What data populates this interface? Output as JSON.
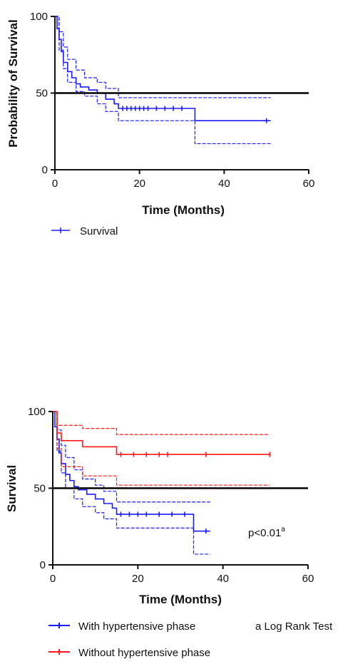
{
  "chart_data": [
    {
      "type": "line",
      "subtype": "kaplan-meier",
      "title": "",
      "xlabel": "Time (Months)",
      "ylabel": "Probability of Survival",
      "xlim": [
        0,
        60
      ],
      "ylim": [
        0,
        100
      ],
      "xticks": [
        0,
        20,
        40,
        60
      ],
      "yticks": [
        0,
        50,
        100
      ],
      "reference_line": {
        "y": 50,
        "color": "#000000"
      },
      "legend": {
        "position": "bottom-left",
        "entries": [
          "Survival"
        ]
      },
      "series": [
        {
          "name": "Survival",
          "color": "#1a1aff",
          "role": "estimate",
          "x": [
            0,
            0.5,
            1,
            1.5,
            2,
            3,
            4,
            5,
            6,
            8,
            10,
            12,
            14,
            15,
            20,
            33,
            33.1,
            51
          ],
          "y": [
            100,
            92,
            85,
            77,
            70,
            64,
            60,
            56,
            54,
            52,
            50,
            46,
            43,
            40,
            40,
            40,
            32,
            32
          ]
        },
        {
          "name": "",
          "color": "#1a1aff",
          "role": "upper-ci",
          "x": [
            0,
            1,
            2,
            3,
            5,
            7,
            10,
            12,
            15,
            51
          ],
          "y": [
            100,
            90,
            80,
            72,
            65,
            60,
            57,
            53,
            47,
            47
          ]
        },
        {
          "name": "",
          "color": "#1a1aff",
          "role": "lower-ci",
          "x": [
            0,
            1,
            2,
            3,
            5,
            7,
            10,
            12,
            15,
            33,
            33.1,
            51
          ],
          "y": [
            100,
            78,
            66,
            57,
            51,
            48,
            43,
            38,
            32,
            32,
            17,
            17
          ]
        }
      ],
      "censor_marks": {
        "series": "Survival",
        "x": [
          16,
          17,
          18,
          19,
          20,
          21,
          22,
          24,
          26,
          28,
          30,
          50
        ]
      }
    },
    {
      "type": "line",
      "subtype": "kaplan-meier",
      "title": "",
      "xlabel": "Time (Months)",
      "ylabel": "Survival",
      "xlim": [
        0,
        60
      ],
      "ylim": [
        0,
        100
      ],
      "xticks": [
        0,
        20,
        40,
        60
      ],
      "yticks": [
        0,
        50,
        100
      ],
      "reference_line": {
        "y": 50,
        "color": "#000000"
      },
      "annotation": {
        "text": "p<0.01",
        "superscript": "a",
        "position": "right-middle"
      },
      "footnote": "a Log Rank Test",
      "legend": {
        "position": "bottom-left",
        "entries": [
          "With hypertensive phase",
          "Without hypertensive phase"
        ]
      },
      "series": [
        {
          "name": "With hypertensive phase",
          "color": "#1a1aff",
          "role": "estimate",
          "x": [
            0,
            0.5,
            1,
            1.5,
            2,
            3,
            4,
            5,
            6,
            8,
            10,
            12,
            14,
            15,
            20,
            33,
            33.1,
            37
          ],
          "y": [
            100,
            90,
            82,
            73,
            66,
            59,
            55,
            51,
            49,
            46,
            43,
            40,
            37,
            33,
            33,
            33,
            22,
            22
          ]
        },
        {
          "name": "",
          "color": "#1a1aff",
          "role": "upper-ci",
          "x": [
            0,
            1,
            2,
            3,
            5,
            7,
            10,
            12,
            15,
            37
          ],
          "y": [
            100,
            88,
            78,
            70,
            62,
            56,
            52,
            48,
            41,
            41
          ]
        },
        {
          "name": "",
          "color": "#1a1aff",
          "role": "lower-ci",
          "x": [
            0,
            1,
            2,
            3,
            5,
            7,
            10,
            12,
            15,
            33,
            33.1,
            37
          ],
          "y": [
            100,
            74,
            60,
            50,
            43,
            38,
            34,
            30,
            24,
            24,
            7,
            7
          ]
        },
        {
          "name": "Without hypertensive phase",
          "color": "#ff1a1a",
          "role": "estimate",
          "x": [
            0,
            1,
            2,
            7,
            15,
            51
          ],
          "y": [
            100,
            86,
            81,
            77,
            72,
            72
          ]
        },
        {
          "name": "",
          "color": "#ff1a1a",
          "role": "upper-ci",
          "x": [
            0,
            1,
            7,
            15,
            51
          ],
          "y": [
            100,
            91,
            89,
            85,
            85
          ]
        },
        {
          "name": "",
          "color": "#ff1a1a",
          "role": "lower-ci",
          "x": [
            0,
            1,
            2,
            7,
            15,
            51
          ],
          "y": [
            100,
            76,
            64,
            58,
            52,
            52
          ]
        }
      ],
      "censor_marks": [
        {
          "series": "With hypertensive phase",
          "x": [
            16,
            18,
            20,
            22,
            25,
            28,
            31,
            36
          ]
        },
        {
          "series": "Without hypertensive phase",
          "x": [
            16,
            19,
            22,
            25,
            27,
            36,
            51
          ]
        }
      ]
    }
  ]
}
